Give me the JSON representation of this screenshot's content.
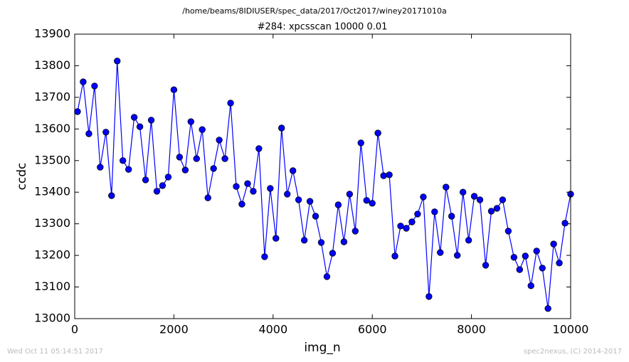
{
  "chart_data": {
    "type": "line",
    "suptitle": "/home/beams/8IDIUSER/spec_data/2017/Oct2017/winey20171010a",
    "title": "#284: xpcsscan 10000 0.01",
    "xlabel": "img_n",
    "ylabel": "ccdc",
    "footer_left": "Wed Oct 11 05:14:51 2017",
    "footer_right": "spec2nexus, (C) 2014-2017",
    "x": [
      57,
      171,
      286,
      400,
      514,
      629,
      743,
      857,
      971,
      1086,
      1200,
      1314,
      1429,
      1543,
      1657,
      1771,
      1886,
      2000,
      2114,
      2229,
      2343,
      2457,
      2571,
      2686,
      2800,
      2914,
      3029,
      3143,
      3257,
      3371,
      3486,
      3600,
      3714,
      3829,
      3943,
      4057,
      4171,
      4286,
      4400,
      4514,
      4629,
      4743,
      4857,
      4971,
      5086,
      5200,
      5314,
      5429,
      5543,
      5657,
      5771,
      5886,
      6000,
      6114,
      6229,
      6343,
      6457,
      6571,
      6686,
      6800,
      6914,
      7029,
      7143,
      7257,
      7371,
      7486,
      7600,
      7714,
      7829,
      7943,
      8057,
      8171,
      8286,
      8400,
      8514,
      8629,
      8743,
      8857,
      8971,
      9086,
      9200,
      9314,
      9429,
      9543,
      9657,
      9771,
      9886,
      10000
    ],
    "series": [
      {
        "name": "ccdc",
        "color": "#0000ff",
        "values": [
          13655,
          13749,
          13585,
          13736,
          13479,
          13590,
          13389,
          13815,
          13500,
          13472,
          13637,
          13607,
          13439,
          13628,
          13403,
          13421,
          13448,
          13724,
          13511,
          13470,
          13623,
          13506,
          13598,
          13382,
          13475,
          13565,
          13506,
          13682,
          13418,
          13362,
          13427,
          13403,
          13538,
          13196,
          13412,
          13254,
          13603,
          13394,
          13468,
          13376,
          13248,
          13371,
          13324,
          13241,
          13133,
          13207,
          13360,
          13243,
          13394,
          13277,
          13556,
          13374,
          13365,
          13587,
          13452,
          13455,
          13198,
          13293,
          13286,
          13306,
          13331,
          13385,
          13070,
          13338,
          13209,
          13416,
          13324,
          13200,
          13400,
          13248,
          13387,
          13376,
          13169,
          13340,
          13349,
          13376,
          13277,
          13194,
          13155,
          13198,
          13104,
          13214,
          13160,
          13032,
          13236,
          13176,
          13302,
          13394
        ]
      }
    ],
    "xlim": [
      0,
      10000
    ],
    "xticks": [
      0,
      2000,
      4000,
      6000,
      8000,
      10000
    ],
    "ylim": [
      13000,
      13900
    ],
    "yticks": [
      13000,
      13100,
      13200,
      13300,
      13400,
      13500,
      13600,
      13700,
      13800,
      13900
    ],
    "grid": false
  }
}
